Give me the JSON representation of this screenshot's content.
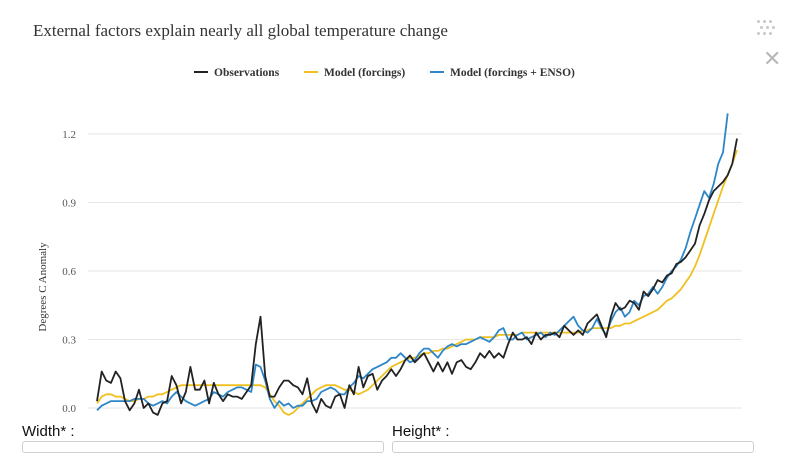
{
  "chart_data": {
    "type": "line",
    "title": "External factors explain nearly all global temperature change",
    "ylabel": "Degrees C Anomaly",
    "xlabel": "",
    "x_start": 1880,
    "x_end": 2016,
    "ylim": [
      -0.07,
      1.35
    ],
    "yticks": [
      0.0,
      0.3,
      0.6,
      0.9,
      1.2
    ],
    "ytick_labels": [
      "0.0",
      "0.3",
      "0.6",
      "0.9",
      "1.2"
    ],
    "grid": true,
    "legend": "top-center",
    "series": [
      {
        "name": "Observations",
        "color": "#222222",
        "values": [
          0.03,
          0.16,
          0.12,
          0.11,
          0.16,
          0.13,
          0.03,
          -0.01,
          0.02,
          0.08,
          0.0,
          0.02,
          -0.02,
          -0.03,
          0.02,
          0.03,
          0.14,
          0.1,
          0.02,
          0.07,
          0.18,
          0.08,
          0.08,
          0.12,
          0.02,
          0.11,
          0.06,
          0.03,
          0.06,
          0.05,
          0.05,
          0.04,
          0.07,
          0.1,
          0.28,
          0.4,
          0.14,
          0.05,
          0.05,
          0.09,
          0.12,
          0.12,
          0.1,
          0.09,
          0.06,
          0.13,
          0.02,
          -0.02,
          0.04,
          0.01,
          0.0,
          0.05,
          0.06,
          0.0,
          0.1,
          0.06,
          0.18,
          0.09,
          0.14,
          0.15,
          0.08,
          0.12,
          0.14,
          0.17,
          0.14,
          0.17,
          0.21,
          0.23,
          0.2,
          0.22,
          0.24,
          0.2,
          0.16,
          0.2,
          0.16,
          0.2,
          0.15,
          0.2,
          0.21,
          0.18,
          0.17,
          0.2,
          0.24,
          0.22,
          0.25,
          0.22,
          0.24,
          0.22,
          0.28,
          0.33,
          0.3,
          0.3,
          0.31,
          0.28,
          0.33,
          0.3,
          0.32,
          0.32,
          0.33,
          0.31,
          0.36,
          0.34,
          0.32,
          0.34,
          0.32,
          0.37,
          0.39,
          0.41,
          0.36,
          0.31,
          0.4,
          0.46,
          0.43,
          0.44,
          0.47,
          0.46,
          0.43,
          0.51,
          0.49,
          0.52,
          0.56,
          0.55,
          0.58,
          0.59,
          0.63,
          0.64,
          0.66,
          0.69,
          0.72,
          0.8,
          0.85,
          0.91,
          0.95,
          0.97,
          0.99,
          1.02,
          1.07,
          1.18
        ]
      },
      {
        "name": "Model (forcings)",
        "color": "#f0c020",
        "values": [
          0.02,
          0.05,
          0.06,
          0.06,
          0.05,
          0.05,
          0.04,
          0.03,
          0.03,
          0.04,
          0.04,
          0.05,
          0.05,
          0.06,
          0.06,
          0.07,
          0.08,
          0.09,
          0.1,
          0.1,
          0.1,
          0.1,
          0.1,
          0.1,
          0.1,
          0.1,
          0.1,
          0.1,
          0.1,
          0.1,
          0.1,
          0.1,
          0.1,
          0.1,
          0.1,
          0.1,
          0.09,
          0.06,
          0.03,
          0.01,
          -0.02,
          -0.03,
          -0.02,
          0.0,
          0.02,
          0.04,
          0.06,
          0.08,
          0.09,
          0.1,
          0.1,
          0.1,
          0.09,
          0.08,
          0.08,
          0.07,
          0.06,
          0.07,
          0.08,
          0.1,
          0.12,
          0.14,
          0.16,
          0.18,
          0.19,
          0.2,
          0.21,
          0.22,
          0.22,
          0.23,
          0.24,
          0.24,
          0.25,
          0.25,
          0.26,
          0.26,
          0.27,
          0.28,
          0.29,
          0.3,
          0.3,
          0.3,
          0.31,
          0.31,
          0.31,
          0.31,
          0.32,
          0.32,
          0.32,
          0.32,
          0.32,
          0.33,
          0.33,
          0.33,
          0.33,
          0.33,
          0.33,
          0.33,
          0.33,
          0.33,
          0.33,
          0.33,
          0.33,
          0.33,
          0.34,
          0.34,
          0.35,
          0.35,
          0.35,
          0.35,
          0.35,
          0.36,
          0.36,
          0.37,
          0.37,
          0.38,
          0.39,
          0.4,
          0.41,
          0.42,
          0.43,
          0.45,
          0.47,
          0.48,
          0.5,
          0.52,
          0.55,
          0.58,
          0.62,
          0.67,
          0.73,
          0.79,
          0.85,
          0.91,
          0.97,
          1.02,
          1.07,
          1.13
        ]
      },
      {
        "name": "Model (forcings + ENSO)",
        "color": "#2e86c8",
        "values": [
          -0.01,
          0.01,
          0.02,
          0.03,
          0.03,
          0.03,
          0.03,
          0.03,
          0.04,
          0.04,
          0.04,
          0.02,
          0.01,
          0.02,
          0.03,
          0.02,
          0.05,
          0.07,
          0.05,
          0.03,
          0.02,
          0.01,
          0.02,
          0.03,
          0.04,
          0.07,
          0.06,
          0.05,
          0.07,
          0.08,
          0.09,
          0.09,
          0.08,
          0.07,
          0.19,
          0.18,
          0.12,
          0.04,
          0.0,
          0.03,
          0.01,
          0.02,
          0.0,
          0.01,
          0.01,
          0.03,
          0.03,
          0.04,
          0.07,
          0.08,
          0.09,
          0.08,
          0.06,
          0.06,
          0.09,
          0.11,
          0.14,
          0.13,
          0.15,
          0.17,
          0.18,
          0.19,
          0.2,
          0.22,
          0.22,
          0.24,
          0.22,
          0.2,
          0.21,
          0.24,
          0.26,
          0.26,
          0.24,
          0.22,
          0.25,
          0.27,
          0.28,
          0.27,
          0.28,
          0.28,
          0.29,
          0.3,
          0.31,
          0.3,
          0.29,
          0.31,
          0.34,
          0.35,
          0.3,
          0.3,
          0.32,
          0.33,
          0.3,
          0.31,
          0.32,
          0.33,
          0.31,
          0.33,
          0.32,
          0.34,
          0.36,
          0.38,
          0.4,
          0.36,
          0.34,
          0.33,
          0.35,
          0.39,
          0.35,
          0.32,
          0.38,
          0.42,
          0.44,
          0.4,
          0.42,
          0.47,
          0.45,
          0.49,
          0.5,
          0.53,
          0.5,
          0.53,
          0.57,
          0.6,
          0.62,
          0.65,
          0.7,
          0.77,
          0.83,
          0.89,
          0.95,
          0.92,
          0.98,
          1.07,
          1.12,
          1.29
        ]
      }
    ]
  },
  "form": {
    "width_label": "Width* :",
    "height_label": "Height* :"
  }
}
